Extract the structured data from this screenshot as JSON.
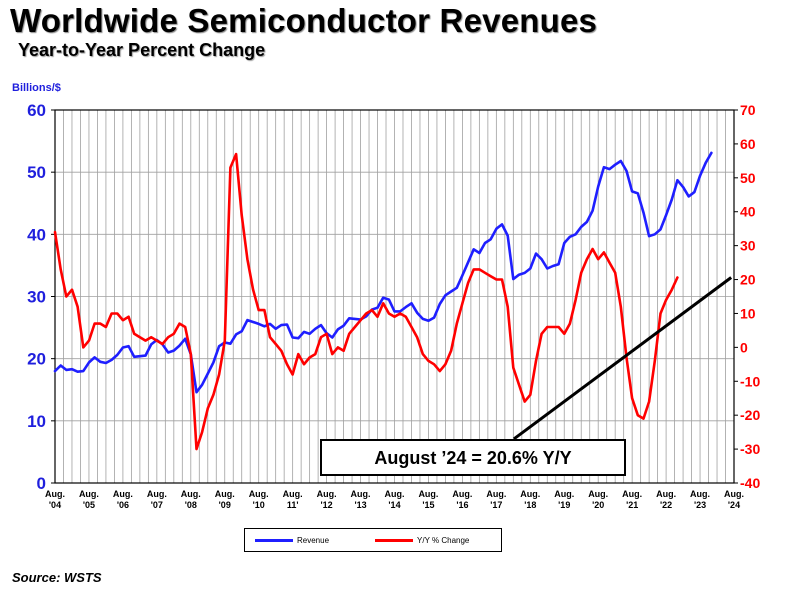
{
  "header": {
    "title": "Worldwide Semiconductor Revenues",
    "subtitle": "Year-to-Year Percent Change"
  },
  "source": "Source: WSTS",
  "legend": {
    "revenue_label": "Revenue",
    "yoy_label": "Y/Y % Change"
  },
  "colors": {
    "revenue": "#1f1fff",
    "yoy": "#ff0000",
    "left_axis": "#1f1fdd",
    "right_axis": "#ff0000"
  },
  "chart_data": {
    "type": "line",
    "title": "Worldwide Semiconductor Revenues",
    "subtitle": "Year-to-Year Percent Change",
    "y_left_label": "Billions/$",
    "y_left_lim": [
      0,
      60
    ],
    "y_left_ticks": [
      0,
      10,
      20,
      30,
      40,
      50,
      60
    ],
    "y_right_lim": [
      -40,
      70
    ],
    "y_right_ticks": [
      -40,
      -30,
      -20,
      -10,
      0,
      10,
      20,
      30,
      40,
      50,
      60,
      70
    ],
    "x_lim": [
      2004.583,
      2024.583
    ],
    "x_ticks": [
      {
        "x": 2004.583,
        "line1": "Aug.",
        "line2": "'04"
      },
      {
        "x": 2005.583,
        "line1": "Aug.",
        "line2": "'05"
      },
      {
        "x": 2006.583,
        "line1": "Aug.",
        "line2": "'06"
      },
      {
        "x": 2007.583,
        "line1": "Aug.",
        "line2": "'07"
      },
      {
        "x": 2008.583,
        "line1": "Aug.",
        "line2": "'08"
      },
      {
        "x": 2009.583,
        "line1": "Aug.",
        "line2": "'09"
      },
      {
        "x": 2010.583,
        "line1": "Aug.",
        "line2": "'10"
      },
      {
        "x": 2011.583,
        "line1": "Aug.",
        "line2": "11'"
      },
      {
        "x": 2012.583,
        "line1": "Aug.",
        "line2": "'12"
      },
      {
        "x": 2013.583,
        "line1": "Aug.",
        "line2": "'13"
      },
      {
        "x": 2014.583,
        "line1": "Aug.",
        "line2": "'14"
      },
      {
        "x": 2015.583,
        "line1": "Aug.",
        "line2": "'15"
      },
      {
        "x": 2016.583,
        "line1": "Aug.",
        "line2": "'16"
      },
      {
        "x": 2017.583,
        "line1": "Aug.",
        "line2": "'17"
      },
      {
        "x": 2018.583,
        "line1": "Aug.",
        "line2": "'18"
      },
      {
        "x": 2019.583,
        "line1": "Aug.",
        "line2": "'19"
      },
      {
        "x": 2020.583,
        "line1": "Aug.",
        "line2": "'20"
      },
      {
        "x": 2021.583,
        "line1": "Aug.",
        "line2": "'21"
      },
      {
        "x": 2022.583,
        "line1": "Aug.",
        "line2": "'22"
      },
      {
        "x": 2023.583,
        "line1": "Aug.",
        "line2": "'23"
      },
      {
        "x": 2024.583,
        "line1": "Aug.",
        "line2": "'24"
      }
    ],
    "grid": true,
    "series": [
      {
        "name": "Revenue",
        "axis": "left",
        "color": "#1f1fff",
        "points": [
          [
            2004.583,
            18.0
          ],
          [
            2004.75,
            18.9
          ],
          [
            2004.917,
            18.2
          ],
          [
            2005.083,
            18.3
          ],
          [
            2005.25,
            17.9
          ],
          [
            2005.417,
            18.0
          ],
          [
            2005.583,
            19.4
          ],
          [
            2005.75,
            20.2
          ],
          [
            2005.917,
            19.5
          ],
          [
            2006.083,
            19.3
          ],
          [
            2006.25,
            19.8
          ],
          [
            2006.417,
            20.6
          ],
          [
            2006.583,
            21.8
          ],
          [
            2006.75,
            22.0
          ],
          [
            2006.917,
            20.3
          ],
          [
            2007.083,
            20.4
          ],
          [
            2007.25,
            20.5
          ],
          [
            2007.417,
            22.3
          ],
          [
            2007.583,
            23.0
          ],
          [
            2007.75,
            22.3
          ],
          [
            2007.917,
            21.0
          ],
          [
            2008.083,
            21.3
          ],
          [
            2008.25,
            22.1
          ],
          [
            2008.417,
            23.2
          ],
          [
            2008.583,
            20.7
          ],
          [
            2008.75,
            14.6
          ],
          [
            2008.917,
            15.8
          ],
          [
            2009.083,
            17.6
          ],
          [
            2009.25,
            19.4
          ],
          [
            2009.417,
            22.0
          ],
          [
            2009.583,
            22.6
          ],
          [
            2009.75,
            22.4
          ],
          [
            2009.917,
            23.9
          ],
          [
            2010.083,
            24.4
          ],
          [
            2010.25,
            26.2
          ],
          [
            2010.417,
            25.9
          ],
          [
            2010.583,
            25.6
          ],
          [
            2010.75,
            25.2
          ],
          [
            2010.917,
            25.6
          ],
          [
            2011.083,
            24.8
          ],
          [
            2011.25,
            25.4
          ],
          [
            2011.417,
            25.5
          ],
          [
            2011.583,
            23.4
          ],
          [
            2011.75,
            23.3
          ],
          [
            2011.917,
            24.3
          ],
          [
            2012.083,
            24.0
          ],
          [
            2012.25,
            24.8
          ],
          [
            2012.417,
            25.4
          ],
          [
            2012.583,
            24.1
          ],
          [
            2012.75,
            23.4
          ],
          [
            2012.917,
            24.7
          ],
          [
            2013.083,
            25.3
          ],
          [
            2013.25,
            26.5
          ],
          [
            2013.417,
            26.4
          ],
          [
            2013.583,
            26.3
          ],
          [
            2013.75,
            26.8
          ],
          [
            2013.917,
            27.9
          ],
          [
            2014.083,
            28.2
          ],
          [
            2014.25,
            29.8
          ],
          [
            2014.417,
            29.5
          ],
          [
            2014.583,
            27.6
          ],
          [
            2014.75,
            27.6
          ],
          [
            2014.917,
            28.3
          ],
          [
            2015.083,
            28.9
          ],
          [
            2015.25,
            27.4
          ],
          [
            2015.417,
            26.4
          ],
          [
            2015.583,
            26.1
          ],
          [
            2015.75,
            26.6
          ],
          [
            2015.917,
            28.8
          ],
          [
            2016.083,
            30.2
          ],
          [
            2016.25,
            30.8
          ],
          [
            2016.417,
            31.4
          ],
          [
            2016.583,
            33.4
          ],
          [
            2016.75,
            35.5
          ],
          [
            2016.917,
            37.6
          ],
          [
            2017.083,
            37.0
          ],
          [
            2017.25,
            38.6
          ],
          [
            2017.417,
            39.2
          ],
          [
            2017.583,
            40.9
          ],
          [
            2017.75,
            41.6
          ],
          [
            2017.917,
            39.8
          ],
          [
            2018.083,
            32.8
          ],
          [
            2018.25,
            33.5
          ],
          [
            2018.417,
            33.8
          ],
          [
            2018.583,
            34.5
          ],
          [
            2018.75,
            36.9
          ],
          [
            2018.917,
            36.0
          ],
          [
            2019.083,
            34.5
          ],
          [
            2019.25,
            34.9
          ],
          [
            2019.417,
            35.2
          ],
          [
            2019.583,
            38.6
          ],
          [
            2019.75,
            39.6
          ],
          [
            2019.917,
            40.0
          ],
          [
            2020.083,
            41.2
          ],
          [
            2020.25,
            42.0
          ],
          [
            2020.417,
            43.8
          ],
          [
            2020.583,
            47.7
          ],
          [
            2020.75,
            50.8
          ],
          [
            2020.917,
            50.5
          ],
          [
            2021.083,
            51.2
          ],
          [
            2021.25,
            51.8
          ],
          [
            2021.417,
            50.2
          ],
          [
            2021.583,
            46.9
          ],
          [
            2021.75,
            46.6
          ],
          [
            2021.917,
            43.5
          ],
          [
            2022.083,
            39.7
          ],
          [
            2022.25,
            40.0
          ],
          [
            2022.417,
            40.8
          ],
          [
            2022.583,
            43.1
          ],
          [
            2022.75,
            45.6
          ],
          [
            2022.917,
            48.7
          ],
          [
            2023.083,
            47.6
          ],
          [
            2023.25,
            46.1
          ],
          [
            2023.417,
            46.8
          ],
          [
            2023.583,
            49.4
          ],
          [
            2023.75,
            51.5
          ],
          [
            2023.917,
            53.1
          ]
        ]
      },
      {
        "name": "Y/Y % Change",
        "axis": "right",
        "color": "#ff0000",
        "points": [
          [
            2004.583,
            34
          ],
          [
            2004.75,
            23
          ],
          [
            2004.917,
            15
          ],
          [
            2005.083,
            17
          ],
          [
            2005.25,
            12
          ],
          [
            2005.417,
            0
          ],
          [
            2005.583,
            2
          ],
          [
            2005.75,
            7
          ],
          [
            2005.917,
            7
          ],
          [
            2006.083,
            6
          ],
          [
            2006.25,
            10
          ],
          [
            2006.417,
            10
          ],
          [
            2006.583,
            8
          ],
          [
            2006.75,
            9
          ],
          [
            2006.917,
            4
          ],
          [
            2007.083,
            3
          ],
          [
            2007.25,
            2
          ],
          [
            2007.417,
            3
          ],
          [
            2007.583,
            2
          ],
          [
            2007.75,
            1
          ],
          [
            2007.917,
            3
          ],
          [
            2008.083,
            4
          ],
          [
            2008.25,
            7
          ],
          [
            2008.417,
            6
          ],
          [
            2008.583,
            -2
          ],
          [
            2008.75,
            -30
          ],
          [
            2008.917,
            -25
          ],
          [
            2009.083,
            -18
          ],
          [
            2009.25,
            -14
          ],
          [
            2009.417,
            -8
          ],
          [
            2009.583,
            2
          ],
          [
            2009.75,
            53
          ],
          [
            2009.917,
            57
          ],
          [
            2010.083,
            39
          ],
          [
            2010.25,
            26
          ],
          [
            2010.417,
            17
          ],
          [
            2010.583,
            11
          ],
          [
            2010.75,
            11
          ],
          [
            2010.917,
            3
          ],
          [
            2011.083,
            1
          ],
          [
            2011.25,
            -1
          ],
          [
            2011.417,
            -5
          ],
          [
            2011.583,
            -8
          ],
          [
            2011.75,
            -2
          ],
          [
            2011.917,
            -5
          ],
          [
            2012.083,
            -3
          ],
          [
            2012.25,
            -2
          ],
          [
            2012.417,
            3
          ],
          [
            2012.583,
            4
          ],
          [
            2012.75,
            -2
          ],
          [
            2012.917,
            0
          ],
          [
            2013.083,
            -1
          ],
          [
            2013.25,
            4
          ],
          [
            2013.417,
            6
          ],
          [
            2013.583,
            8
          ],
          [
            2013.75,
            10
          ],
          [
            2013.917,
            11
          ],
          [
            2014.083,
            9
          ],
          [
            2014.25,
            13
          ],
          [
            2014.417,
            10
          ],
          [
            2014.583,
            9
          ],
          [
            2014.75,
            10
          ],
          [
            2014.917,
            9
          ],
          [
            2015.083,
            6
          ],
          [
            2015.25,
            3
          ],
          [
            2015.417,
            -2
          ],
          [
            2015.583,
            -4
          ],
          [
            2015.75,
            -5
          ],
          [
            2015.917,
            -7
          ],
          [
            2016.083,
            -5
          ],
          [
            2016.25,
            -1
          ],
          [
            2016.417,
            7
          ],
          [
            2016.583,
            13
          ],
          [
            2016.75,
            19
          ],
          [
            2016.917,
            23
          ],
          [
            2017.083,
            23
          ],
          [
            2017.25,
            22
          ],
          [
            2017.417,
            21
          ],
          [
            2017.583,
            20
          ],
          [
            2017.75,
            20
          ],
          [
            2017.917,
            12
          ],
          [
            2018.083,
            -6
          ],
          [
            2018.25,
            -11
          ],
          [
            2018.417,
            -16
          ],
          [
            2018.583,
            -14
          ],
          [
            2018.75,
            -4
          ],
          [
            2018.917,
            4
          ],
          [
            2019.083,
            6
          ],
          [
            2019.25,
            6
          ],
          [
            2019.417,
            6
          ],
          [
            2019.583,
            4
          ],
          [
            2019.75,
            7
          ],
          [
            2019.917,
            14
          ],
          [
            2020.083,
            22
          ],
          [
            2020.25,
            26
          ],
          [
            2020.417,
            29
          ],
          [
            2020.583,
            26
          ],
          [
            2020.75,
            28
          ],
          [
            2020.917,
            25
          ],
          [
            2021.083,
            22
          ],
          [
            2021.25,
            12
          ],
          [
            2021.417,
            -3
          ],
          [
            2021.583,
            -15
          ],
          [
            2021.75,
            -20
          ],
          [
            2021.917,
            -21
          ],
          [
            2022.083,
            -16
          ],
          [
            2022.25,
            -4
          ],
          [
            2022.417,
            10
          ],
          [
            2022.583,
            14
          ],
          [
            2022.75,
            17
          ],
          [
            2022.917,
            20.6
          ]
        ]
      }
    ],
    "annotation": {
      "text": "August ’24 = 20.6% Y/Y",
      "arrow_from": [
        2018.1,
        -27
      ],
      "arrow_to": [
        2024.5,
        20.6
      ]
    }
  }
}
